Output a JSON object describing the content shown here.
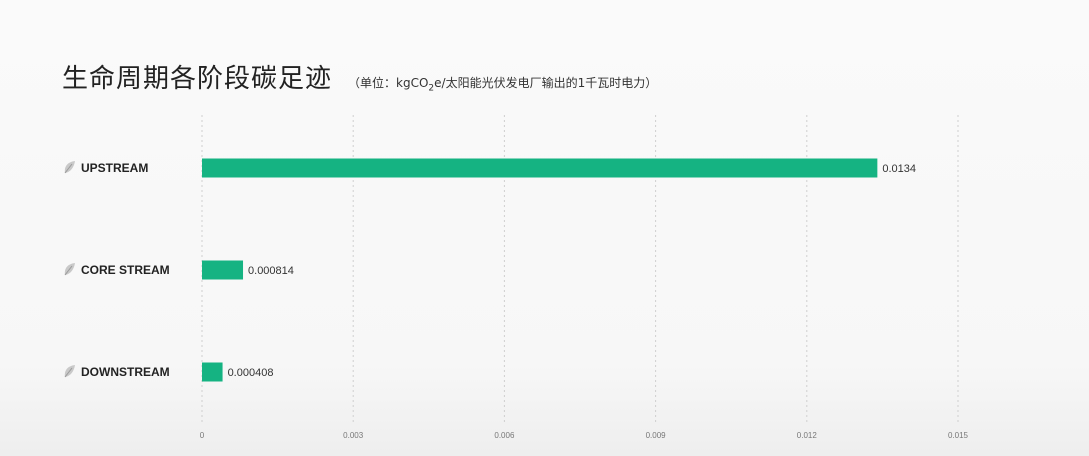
{
  "chart_data": {
    "type": "bar",
    "orientation": "horizontal",
    "title": "生命周期各阶段碳足迹",
    "subtitle_prefix": "（单位：kgCO",
    "subtitle_sub": "2",
    "subtitle_suffix": "e/太阳能光伏发电厂输出的1千瓦时电力）",
    "categories": [
      "UPSTREAM",
      "CORE STREAM",
      "DOWNSTREAM"
    ],
    "values": [
      0.0134,
      0.000814,
      0.000408
    ],
    "value_labels": [
      "0.0134",
      "0.000814",
      "0.000408"
    ],
    "xlim": [
      0,
      0.015
    ],
    "xticks": [
      0,
      0.003,
      0.006,
      0.009,
      0.012,
      0.015
    ],
    "xtick_labels": [
      "0",
      "0.003",
      "0.006",
      "0.009",
      "0.012",
      "0.015"
    ],
    "grid": true,
    "bar_color": "#15b382",
    "icon": "leaf-icon"
  }
}
